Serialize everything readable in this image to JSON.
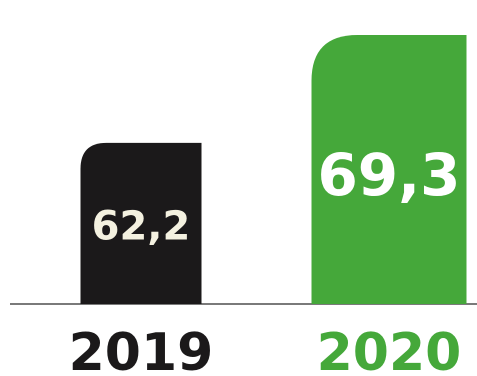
{
  "chart_data": {
    "type": "bar",
    "categories": [
      "2019",
      "2020"
    ],
    "values": [
      62.2,
      69.3
    ],
    "value_labels": [
      "62,2",
      "69,3"
    ],
    "title": "",
    "xlabel": "",
    "ylabel": "",
    "grid": false,
    "legend": "none",
    "bar_colors": [
      "#1b191a",
      "#45a83a"
    ],
    "value_label_colors": [
      "#f4f1e0",
      "#ffffff"
    ],
    "category_label_colors": [
      "#1b191a",
      "#45a83a"
    ],
    "baseline_color": "#7a7a7a"
  }
}
